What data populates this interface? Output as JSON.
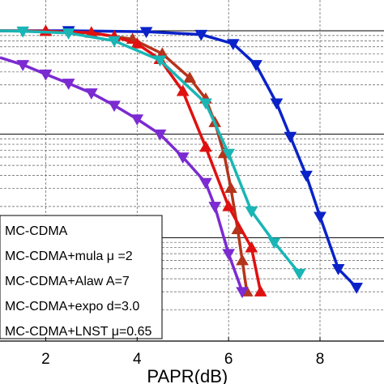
{
  "chart_data": {
    "type": "line",
    "title": "",
    "xlabel": "PAPR(dB)",
    "ylabel": "",
    "xlim": [
      1,
      9.4
    ],
    "ylog": true,
    "ylim": [
      0.001,
      1
    ],
    "grid": true,
    "x_ticks": [
      "2",
      "4",
      "6",
      "8"
    ],
    "legend_position": "bottom-left",
    "series": [
      {
        "name": "MC-CDMA",
        "color": "#0a22c8",
        "marker": "triangle-down",
        "x": [
          1.0,
          2.5,
          4.2,
          5.4,
          6.1,
          6.6,
          7.05,
          7.35,
          7.7,
          8.0,
          8.4,
          8.8
        ],
        "y": [
          1.0,
          1.0,
          0.98,
          0.92,
          0.75,
          0.47,
          0.2,
          0.095,
          0.04,
          0.016,
          0.005,
          0.0033
        ]
      },
      {
        "name": "MC-CDMA+mula μ =2",
        "color": "#b5341c",
        "marker": "triangle-up",
        "x": [
          1.0,
          2.0,
          3.0,
          3.9,
          4.55,
          5.15,
          5.5,
          5.7,
          5.9,
          6.05,
          6.2,
          6.3,
          6.4
        ],
        "y": [
          1.0,
          0.99,
          0.95,
          0.83,
          0.6,
          0.35,
          0.22,
          0.13,
          0.065,
          0.03,
          0.012,
          0.006,
          0.003
        ]
      },
      {
        "name": "MC-CDMA+Alaw  A=7",
        "color": "#e01010",
        "marker": "triangle-up",
        "x": [
          1.0,
          2.0,
          3.0,
          3.5,
          4.0,
          4.5,
          5.0,
          5.5,
          6.0,
          6.5,
          6.7
        ],
        "y": [
          1.0,
          0.99,
          0.96,
          0.88,
          0.75,
          0.53,
          0.26,
          0.075,
          0.02,
          0.008,
          0.003
        ]
      },
      {
        "name": "MC-CDMA+expo d=3.0",
        "color": "#1ab5b5",
        "marker": "triangle-down",
        "x": [
          1.0,
          1.5,
          2.5,
          3.5,
          4.5,
          5.5,
          6.0,
          6.5,
          7.0,
          7.55
        ],
        "y": [
          1.0,
          0.99,
          0.95,
          0.8,
          0.52,
          0.2,
          0.065,
          0.018,
          0.009,
          0.0045
        ]
      },
      {
        "name": "MC-CDMA+LNST μ=0.65",
        "color": "#7b2bd1",
        "marker": "triangle-down",
        "x": [
          1.0,
          1.5,
          2.0,
          2.5,
          3.0,
          3.5,
          4.0,
          4.5,
          5.0,
          5.5,
          5.7,
          6.0,
          6.3
        ],
        "y": [
          0.55,
          0.47,
          0.38,
          0.31,
          0.25,
          0.19,
          0.14,
          0.1,
          0.06,
          0.034,
          0.02,
          0.007,
          0.003
        ]
      }
    ]
  }
}
